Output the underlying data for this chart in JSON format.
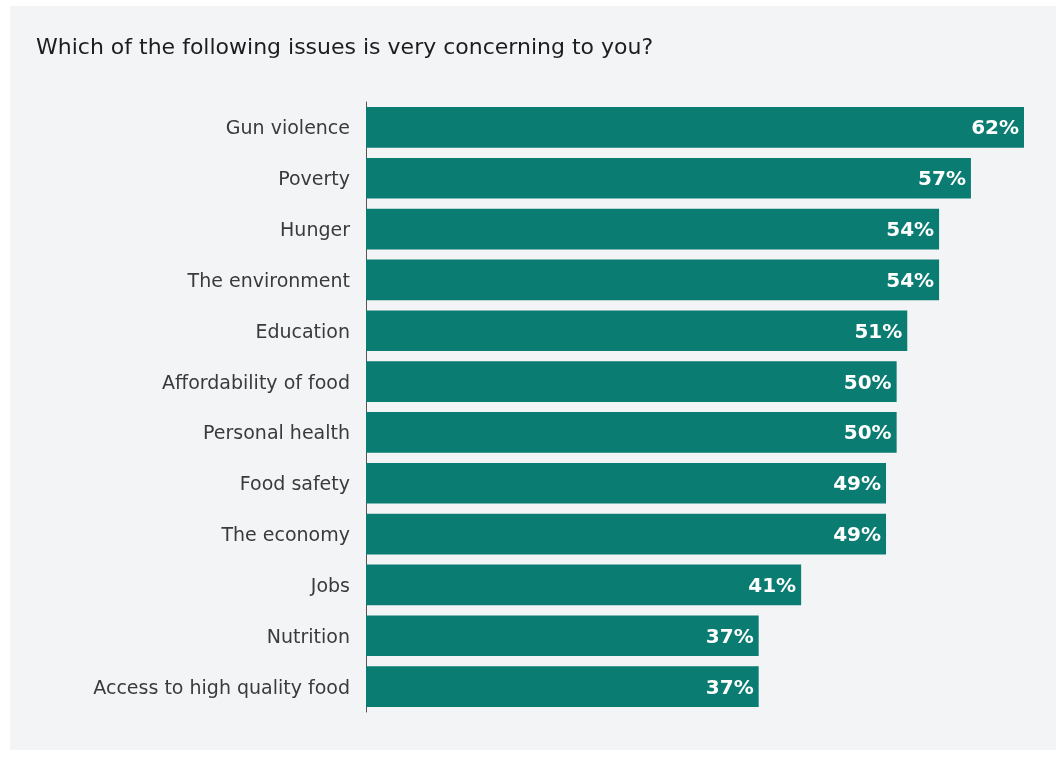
{
  "chart_data": {
    "type": "bar",
    "orientation": "horizontal",
    "title": "Which of the following issues is very concerning to you?",
    "categories": [
      "Gun violence",
      "Poverty",
      "Hunger",
      "The environment",
      "Education",
      "Affordability of food",
      "Personal health",
      "Food safety",
      "The economy",
      "Jobs",
      "Nutrition",
      "Access to high quality food"
    ],
    "values": [
      62,
      57,
      54,
      54,
      51,
      50,
      50,
      49,
      49,
      41,
      37,
      37
    ],
    "value_labels": [
      "62%",
      "57%",
      "54%",
      "54%",
      "51%",
      "50%",
      "50%",
      "49%",
      "49%",
      "41%",
      "37%",
      "37%"
    ],
    "color": "#0a7c72",
    "xlim": [
      0,
      62
    ],
    "tick_labels": "y"
  }
}
